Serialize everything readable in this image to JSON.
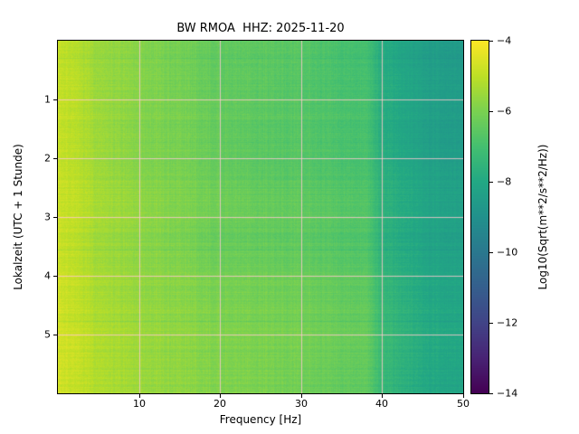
{
  "chart_data": {
    "type": "heatmap",
    "subtype": "spectrogram",
    "title": "BW RMOA  HHZ: 2025-11-20",
    "xlabel": "Frequency [Hz]",
    "ylabel": "Lokalzeit (UTC + 1 Stunde)",
    "x_range": [
      0,
      50
    ],
    "y_range": [
      0,
      6
    ],
    "x_ticks": [
      10,
      20,
      30,
      40,
      50
    ],
    "y_ticks": [
      1,
      2,
      3,
      4,
      5
    ],
    "grid": true,
    "grid_color": "#ffc8d2",
    "colorbar": {
      "label": "Log10(Sqrt(m**2/s**2/Hz))",
      "range": [
        -14,
        -4
      ],
      "ticks": [
        -4,
        -6,
        -8,
        -10,
        -12,
        -14
      ],
      "colormap": "viridis"
    },
    "colormap_stops": [
      "#440154",
      "#482475",
      "#414487",
      "#355f8d",
      "#2a788e",
      "#21918c",
      "#22a884",
      "#44bf70",
      "#7ad151",
      "#bddf26",
      "#fde725"
    ],
    "freq_bins": [
      0,
      2,
      5,
      10,
      15,
      20,
      25,
      30,
      35,
      38,
      40,
      45,
      50
    ],
    "time_bins": [
      0.25,
      0.75,
      1.25,
      1.75,
      2.25,
      2.75,
      3.25,
      3.75,
      4.25,
      4.75,
      5.25,
      5.75
    ],
    "values": [
      [
        -4.9,
        -5.1,
        -5.5,
        -5.8,
        -6.1,
        -6.4,
        -6.5,
        -6.6,
        -6.9,
        -7.0,
        -7.8,
        -8.4,
        -8.6
      ],
      [
        -4.9,
        -5.0,
        -5.5,
        -5.8,
        -6.1,
        -6.4,
        -6.5,
        -6.7,
        -6.9,
        -7.0,
        -7.7,
        -8.3,
        -8.5
      ],
      [
        -4.8,
        -5.0,
        -5.4,
        -5.8,
        -6.0,
        -6.3,
        -6.5,
        -6.6,
        -6.8,
        -6.9,
        -7.7,
        -8.3,
        -8.5
      ],
      [
        -4.9,
        -5.1,
        -5.5,
        -5.9,
        -6.1,
        -6.4,
        -6.6,
        -6.7,
        -6.9,
        -7.0,
        -7.8,
        -8.4,
        -8.6
      ],
      [
        -4.8,
        -5.0,
        -5.4,
        -5.8,
        -6.0,
        -6.3,
        -6.5,
        -6.6,
        -6.8,
        -6.9,
        -7.6,
        -8.2,
        -8.4
      ],
      [
        -4.8,
        -4.9,
        -5.3,
        -5.6,
        -5.9,
        -6.1,
        -6.3,
        -6.4,
        -6.6,
        -6.7,
        -7.5,
        -8.1,
        -8.3
      ],
      [
        -4.8,
        -5.0,
        -5.4,
        -5.7,
        -6.0,
        -6.3,
        -6.4,
        -6.5,
        -6.7,
        -6.8,
        -7.6,
        -8.2,
        -8.4
      ],
      [
        -4.8,
        -5.0,
        -5.4,
        -5.7,
        -5.9,
        -6.2,
        -6.3,
        -6.4,
        -6.6,
        -6.7,
        -7.5,
        -8.1,
        -8.3
      ],
      [
        -4.7,
        -4.9,
        -5.3,
        -5.6,
        -5.8,
        -6.0,
        -6.1,
        -6.2,
        -6.4,
        -6.5,
        -7.3,
        -8.0,
        -8.2
      ],
      [
        -4.7,
        -4.9,
        -5.2,
        -5.5,
        -5.7,
        -5.9,
        -6.0,
        -6.1,
        -6.3,
        -6.4,
        -7.2,
        -7.9,
        -8.1
      ],
      [
        -4.7,
        -4.8,
        -5.2,
        -5.5,
        -5.7,
        -5.9,
        -6.0,
        -6.1,
        -6.3,
        -6.4,
        -7.2,
        -7.9,
        -8.1
      ],
      [
        -4.7,
        -4.9,
        -5.2,
        -5.5,
        -5.7,
        -5.9,
        -6.0,
        -6.2,
        -6.4,
        -6.5,
        -7.3,
        -8.0,
        -8.2
      ]
    ],
    "background": "#ffffff"
  }
}
